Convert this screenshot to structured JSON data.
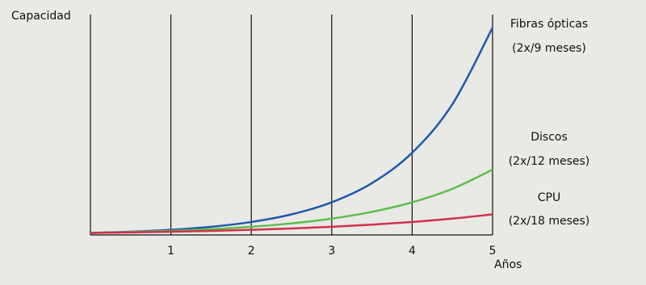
{
  "chart_data": {
    "type": "line",
    "ylabel": "Capacidad",
    "xlabel": "Años",
    "x": [
      0,
      0.5,
      1,
      1.5,
      2,
      2.5,
      3,
      3.5,
      4,
      4.5,
      5
    ],
    "xlim": [
      0,
      5
    ],
    "xticks": [
      1,
      2,
      3,
      4,
      5
    ],
    "ylim": [
      0,
      108
    ],
    "grid": true,
    "series": [
      {
        "name": "Fibras ópticas",
        "rate": "(2x/9 meses)",
        "color": "#1d5aa8",
        "values": [
          1,
          1.587,
          2.52,
          4,
          6.35,
          10.08,
          16,
          25.4,
          40.3,
          64,
          101.6
        ]
      },
      {
        "name": "Discos",
        "rate": "(2x/12 meses)",
        "color": "#5cbf4a",
        "values": [
          1,
          1.41,
          2,
          2.83,
          4,
          5.66,
          8,
          11.3,
          16,
          22.6,
          32
        ]
      },
      {
        "name": "CPU",
        "rate": "(2x/18 meses)",
        "color": "#d0314a",
        "values": [
          1,
          1.26,
          1.59,
          2,
          2.52,
          3.17,
          4,
          5.04,
          6.35,
          8,
          10.08
        ]
      }
    ]
  }
}
